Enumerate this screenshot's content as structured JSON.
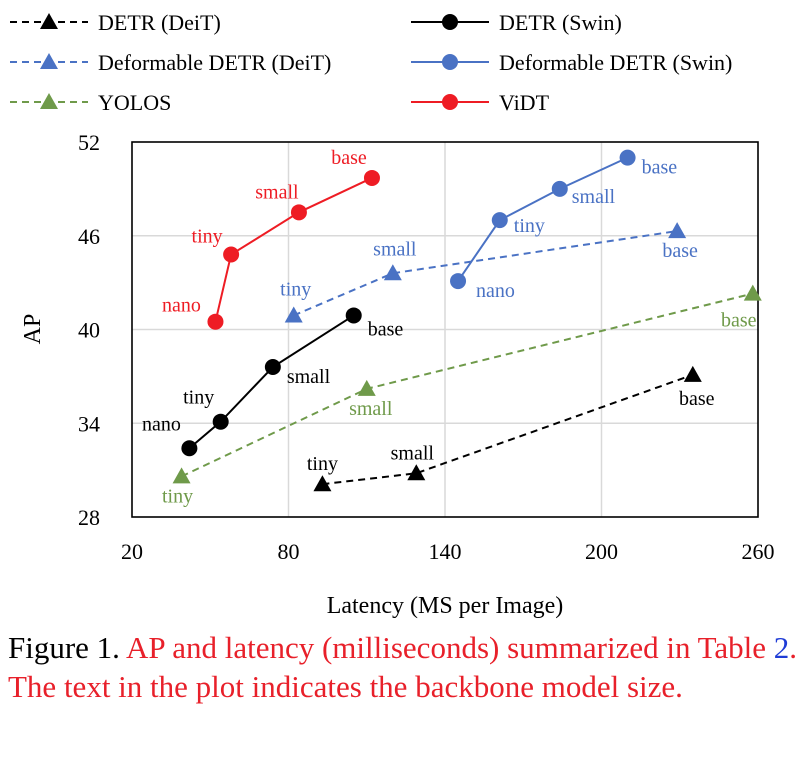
{
  "chart_data": {
    "type": "line",
    "xlabel": "Latency (MS per Image)",
    "ylabel": "AP",
    "xlim": [
      20,
      260
    ],
    "ylim": [
      28,
      52
    ],
    "xticks": [
      20,
      80,
      140,
      200,
      260
    ],
    "yticks": [
      28,
      34,
      40,
      46,
      52
    ],
    "grid": true,
    "legend_position": "top",
    "series": [
      {
        "name": "DETR (DeiT)",
        "color": "#000000",
        "dash": true,
        "marker": "triangle",
        "x": [
          93,
          129,
          235
        ],
        "y": [
          30.1,
          30.8,
          37.1
        ],
        "labels": [
          "tiny",
          "small",
          "base"
        ]
      },
      {
        "name": "DETR (Swin)",
        "color": "#000000",
        "dash": false,
        "marker": "circle",
        "x": [
          42,
          54,
          74,
          105
        ],
        "y": [
          32.4,
          34.1,
          37.6,
          40.9
        ],
        "labels": [
          "nano",
          "tiny",
          "small",
          "base"
        ]
      },
      {
        "name": "Deformable DETR (DeiT)",
        "color": "#4a72c4",
        "dash": true,
        "marker": "triangle",
        "x": [
          82,
          120,
          229
        ],
        "y": [
          40.9,
          43.6,
          46.3
        ],
        "labels": [
          "tiny",
          "small",
          "base"
        ]
      },
      {
        "name": "Deformable DETR (Swin)",
        "color": "#4a72c4",
        "dash": false,
        "marker": "circle",
        "x": [
          145,
          161,
          184,
          210
        ],
        "y": [
          43.1,
          47.0,
          49.0,
          51.0
        ],
        "labels": [
          "nano",
          "tiny",
          "small",
          "base"
        ]
      },
      {
        "name": "YOLOS",
        "color": "#6f9a4a",
        "dash": true,
        "marker": "triangle",
        "x": [
          39,
          110,
          258
        ],
        "y": [
          30.6,
          36.2,
          42.3
        ],
        "labels": [
          "tiny",
          "small",
          "base"
        ]
      },
      {
        "name": "ViDT",
        "color": "#ee1c24",
        "dash": false,
        "marker": "circle",
        "x": [
          52,
          58,
          84,
          112
        ],
        "y": [
          40.5,
          44.8,
          47.5,
          49.7
        ],
        "labels": [
          "nano",
          "tiny",
          "small",
          "base"
        ]
      }
    ]
  },
  "caption": {
    "prefix": "Figure 1.",
    "red_part1": "AP and latency (milliseconds) summa­rized in Table",
    "table_ref": "2",
    "red_part2": ". The text in the plot indicates the backbone model size."
  }
}
